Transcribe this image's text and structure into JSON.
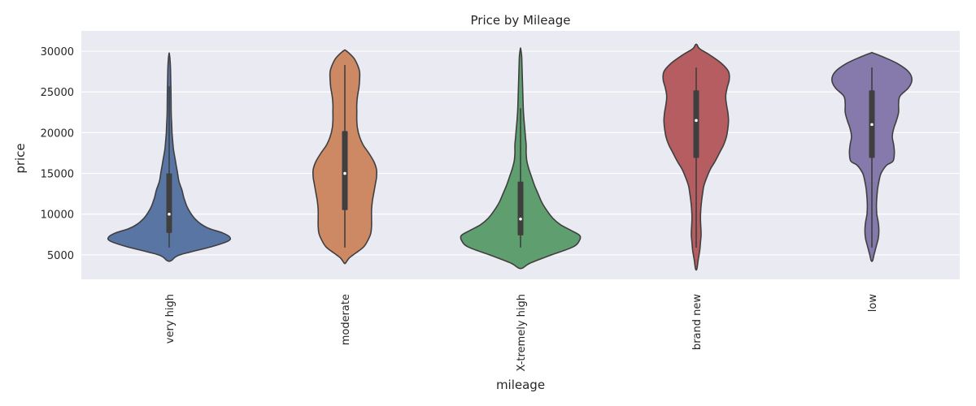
{
  "chart_data": {
    "type": "violin",
    "title": "Price by Mileage",
    "xlabel": "mileage",
    "ylabel": "price",
    "ylim": [
      2000,
      32500
    ],
    "yticks": [
      5000,
      10000,
      15000,
      20000,
      25000,
      30000
    ],
    "grid": true,
    "background": "#EAEAF2",
    "categories": [
      "very high",
      "moderate",
      "X-tremely high",
      "brand new",
      "low"
    ],
    "colors": [
      "#5875A4",
      "#CC8963",
      "#5F9E6E",
      "#B55D60",
      "#857AAB"
    ],
    "box": [
      {
        "whisker_low": 5900,
        "q1": 7700,
        "median": 10000,
        "q3": 15000,
        "whisker_high": 25700
      },
      {
        "whisker_low": 5900,
        "q1": 10500,
        "median": 15000,
        "q3": 20200,
        "whisker_high": 28300
      },
      {
        "whisker_low": 5900,
        "q1": 7400,
        "median": 9400,
        "q3": 14000,
        "whisker_high": 23000
      },
      {
        "whisker_low": 5900,
        "q1": 16900,
        "median": 21500,
        "q3": 25200,
        "whisker_high": 28000
      },
      {
        "whisker_low": 5900,
        "q1": 16900,
        "median": 21000,
        "q3": 25200,
        "whisker_high": 28000
      }
    ],
    "density": [
      {
        "y": [
          4300,
          5000,
          6000,
          6700,
          7200,
          7700,
          8200,
          8800,
          9500,
          10200,
          11000,
          12000,
          13000,
          14000,
          15000,
          16000,
          17000,
          18000,
          19000,
          20000,
          21000,
          22000,
          23000,
          24000,
          25000,
          26000,
          27000,
          28000,
          29000,
          29700
        ],
        "w": [
          0.03,
          0.15,
          0.6,
          0.84,
          0.86,
          0.76,
          0.58,
          0.45,
          0.36,
          0.3,
          0.25,
          0.21,
          0.18,
          0.14,
          0.12,
          0.1,
          0.08,
          0.06,
          0.05,
          0.04,
          0.036,
          0.03,
          0.028,
          0.027,
          0.026,
          0.023,
          0.021,
          0.018,
          0.012,
          0.002
        ]
      },
      {
        "y": [
          4000,
          4600,
          5200,
          6000,
          7000,
          7700,
          8500,
          9500,
          10500,
          11500,
          12500,
          13500,
          14500,
          15500,
          16500,
          17500,
          18500,
          19500,
          20500,
          21500,
          22500,
          23500,
          24500,
          25500,
          26500,
          27500,
          28300,
          29000,
          29600,
          30100
        ],
        "w": [
          0.01,
          0.06,
          0.15,
          0.27,
          0.34,
          0.37,
          0.38,
          0.38,
          0.38,
          0.39,
          0.41,
          0.43,
          0.45,
          0.45,
          0.41,
          0.34,
          0.26,
          0.21,
          0.18,
          0.17,
          0.17,
          0.17,
          0.18,
          0.2,
          0.21,
          0.21,
          0.18,
          0.14,
          0.08,
          0.01
        ]
      },
      {
        "y": [
          3400,
          4000,
          5000,
          6000,
          6800,
          7400,
          8000,
          8700,
          9500,
          10500,
          11500,
          12500,
          13500,
          14500,
          15500,
          16500,
          17500,
          18500,
          19500,
          20500,
          21500,
          22500,
          23500,
          24500,
          25500,
          26500,
          27500,
          28500,
          29500,
          30300
        ],
        "w": [
          0.03,
          0.14,
          0.44,
          0.75,
          0.84,
          0.84,
          0.72,
          0.57,
          0.46,
          0.37,
          0.3,
          0.25,
          0.2,
          0.16,
          0.12,
          0.09,
          0.08,
          0.08,
          0.07,
          0.06,
          0.05,
          0.042,
          0.037,
          0.033,
          0.03,
          0.027,
          0.023,
          0.02,
          0.015,
          0.002
        ]
      },
      {
        "y": [
          3300,
          4500,
          5500,
          6500,
          7500,
          8500,
          9500,
          10500,
          11500,
          12500,
          13500,
          14500,
          15500,
          16500,
          17500,
          18500,
          19500,
          20500,
          21500,
          22500,
          23500,
          24500,
          25500,
          26500,
          27500,
          28500,
          29500,
          30300,
          30800
        ],
        "w": [
          0.01,
          0.03,
          0.05,
          0.06,
          0.07,
          0.065,
          0.06,
          0.065,
          0.075,
          0.09,
          0.11,
          0.15,
          0.2,
          0.27,
          0.33,
          0.39,
          0.43,
          0.45,
          0.46,
          0.45,
          0.43,
          0.42,
          0.44,
          0.47,
          0.46,
          0.36,
          0.2,
          0.05,
          0.01
        ]
      },
      {
        "y": [
          4300,
          5000,
          6000,
          7000,
          8000,
          9000,
          10000,
          11000,
          12000,
          13000,
          14000,
          15000,
          16000,
          16500,
          17500,
          18500,
          19500,
          20500,
          21500,
          22500,
          23500,
          24500,
          25500,
          26500,
          27500,
          28500,
          29300,
          29800
        ],
        "w": [
          0.01,
          0.03,
          0.06,
          0.09,
          0.1,
          0.09,
          0.07,
          0.065,
          0.07,
          0.08,
          0.1,
          0.13,
          0.21,
          0.3,
          0.32,
          0.31,
          0.29,
          0.31,
          0.35,
          0.38,
          0.38,
          0.4,
          0.52,
          0.57,
          0.52,
          0.36,
          0.16,
          0.01
        ]
      }
    ]
  }
}
